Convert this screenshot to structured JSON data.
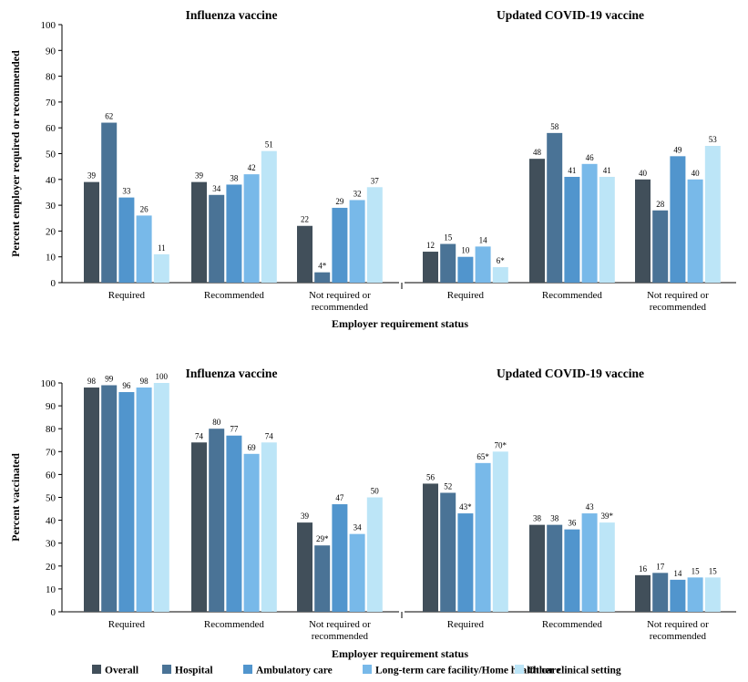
{
  "colors": {
    "Overall": "#414f5a",
    "Hospital": "#4a7396",
    "Ambulatory care": "#5195cd",
    "Long-term care facility/Home health care": "#78b9e9",
    "Other clinical setting": "#bce5f7"
  },
  "legend": [
    "Overall",
    "Hospital",
    "Ambulatory care",
    "Long-term care facility/Home health care",
    "Other clinical setting"
  ],
  "chart_data": [
    {
      "type": "bar",
      "row": "top",
      "ylabel": "Percent employer required or recommended",
      "xlabel": "Employer requirement status",
      "ylim": [
        0,
        100
      ],
      "yticks": [
        0,
        10,
        20,
        30,
        40,
        50,
        60,
        70,
        80,
        90,
        100
      ],
      "panels": [
        {
          "title": "Influenza vaccine",
          "categories": [
            "Required",
            "Recommended",
            "Not required or recommended"
          ],
          "category_labels": [
            [
              "Required"
            ],
            [
              "Recommended"
            ],
            [
              "Not required or",
              "recommended"
            ]
          ],
          "series": [
            {
              "name": "Overall",
              "values": [
                39,
                39,
                22
              ],
              "labels": [
                "39",
                "39",
                "22"
              ]
            },
            {
              "name": "Hospital",
              "values": [
                62,
                34,
                4
              ],
              "labels": [
                "62",
                "34",
                "4*"
              ]
            },
            {
              "name": "Ambulatory care",
              "values": [
                33,
                38,
                29
              ],
              "labels": [
                "33",
                "38",
                "29"
              ]
            },
            {
              "name": "Long-term care facility/Home health care",
              "values": [
                26,
                42,
                32
              ],
              "labels": [
                "26",
                "42",
                "32"
              ]
            },
            {
              "name": "Other clinical setting",
              "values": [
                11,
                51,
                37
              ],
              "labels": [
                "11",
                "51",
                "37"
              ]
            }
          ]
        },
        {
          "title": "Updated COVID-19 vaccine",
          "categories": [
            "Required",
            "Recommended",
            "Not required or recommended"
          ],
          "category_labels": [
            [
              "Required"
            ],
            [
              "Recommended"
            ],
            [
              "Not required or",
              "recommended"
            ]
          ],
          "series": [
            {
              "name": "Overall",
              "values": [
                12,
                48,
                40
              ],
              "labels": [
                "12",
                "48",
                "40"
              ]
            },
            {
              "name": "Hospital",
              "values": [
                15,
                58,
                28
              ],
              "labels": [
                "15",
                "58",
                "28"
              ]
            },
            {
              "name": "Ambulatory care",
              "values": [
                10,
                41,
                49
              ],
              "labels": [
                "10",
                "41",
                "49"
              ]
            },
            {
              "name": "Long-term care facility/Home health care",
              "values": [
                14,
                46,
                40
              ],
              "labels": [
                "14",
                "46",
                "40"
              ]
            },
            {
              "name": "Other clinical setting",
              "values": [
                6,
                41,
                53
              ],
              "labels": [
                "6*",
                "41",
                "53"
              ]
            }
          ]
        }
      ]
    },
    {
      "type": "bar",
      "row": "bottom",
      "ylabel": "Percent vaccinated",
      "xlabel": "Employer requirement status",
      "ylim": [
        0,
        100
      ],
      "yticks": [
        0,
        10,
        20,
        30,
        40,
        50,
        60,
        70,
        80,
        90,
        100
      ],
      "panels": [
        {
          "title": "Influenza vaccine",
          "categories": [
            "Required",
            "Recommended",
            "Not required or recommended"
          ],
          "category_labels": [
            [
              "Required"
            ],
            [
              "Recommended"
            ],
            [
              "Not required or",
              "recommended"
            ]
          ],
          "series": [
            {
              "name": "Overall",
              "values": [
                98,
                74,
                39
              ],
              "labels": [
                "98",
                "74",
                "39"
              ]
            },
            {
              "name": "Hospital",
              "values": [
                99,
                80,
                29
              ],
              "labels": [
                "99",
                "80",
                "29*"
              ]
            },
            {
              "name": "Ambulatory care",
              "values": [
                96,
                77,
                47
              ],
              "labels": [
                "96",
                "77",
                "47"
              ]
            },
            {
              "name": "Long-term care facility/Home health care",
              "values": [
                98,
                69,
                34
              ],
              "labels": [
                "98",
                "69",
                "34"
              ]
            },
            {
              "name": "Other clinical setting",
              "values": [
                100,
                74,
                50
              ],
              "labels": [
                "100",
                "74",
                "50"
              ]
            }
          ]
        },
        {
          "title": "Updated COVID-19 vaccine",
          "categories": [
            "Required",
            "Recommended",
            "Not required or recommended"
          ],
          "category_labels": [
            [
              "Required"
            ],
            [
              "Recommended"
            ],
            [
              "Not required or",
              "recommended"
            ]
          ],
          "series": [
            {
              "name": "Overall",
              "values": [
                56,
                38,
                16
              ],
              "labels": [
                "56",
                "38",
                "16"
              ]
            },
            {
              "name": "Hospital",
              "values": [
                52,
                38,
                17
              ],
              "labels": [
                "52",
                "38",
                "17"
              ]
            },
            {
              "name": "Ambulatory care",
              "values": [
                43,
                36,
                14
              ],
              "labels": [
                "43*",
                "36",
                "14"
              ]
            },
            {
              "name": "Long-term care facility/Home health care",
              "values": [
                65,
                43,
                15
              ],
              "labels": [
                "65*",
                "43",
                "15"
              ]
            },
            {
              "name": "Other clinical setting",
              "values": [
                70,
                39,
                15
              ],
              "labels": [
                "70*",
                "39*",
                "15"
              ]
            }
          ]
        }
      ]
    }
  ]
}
